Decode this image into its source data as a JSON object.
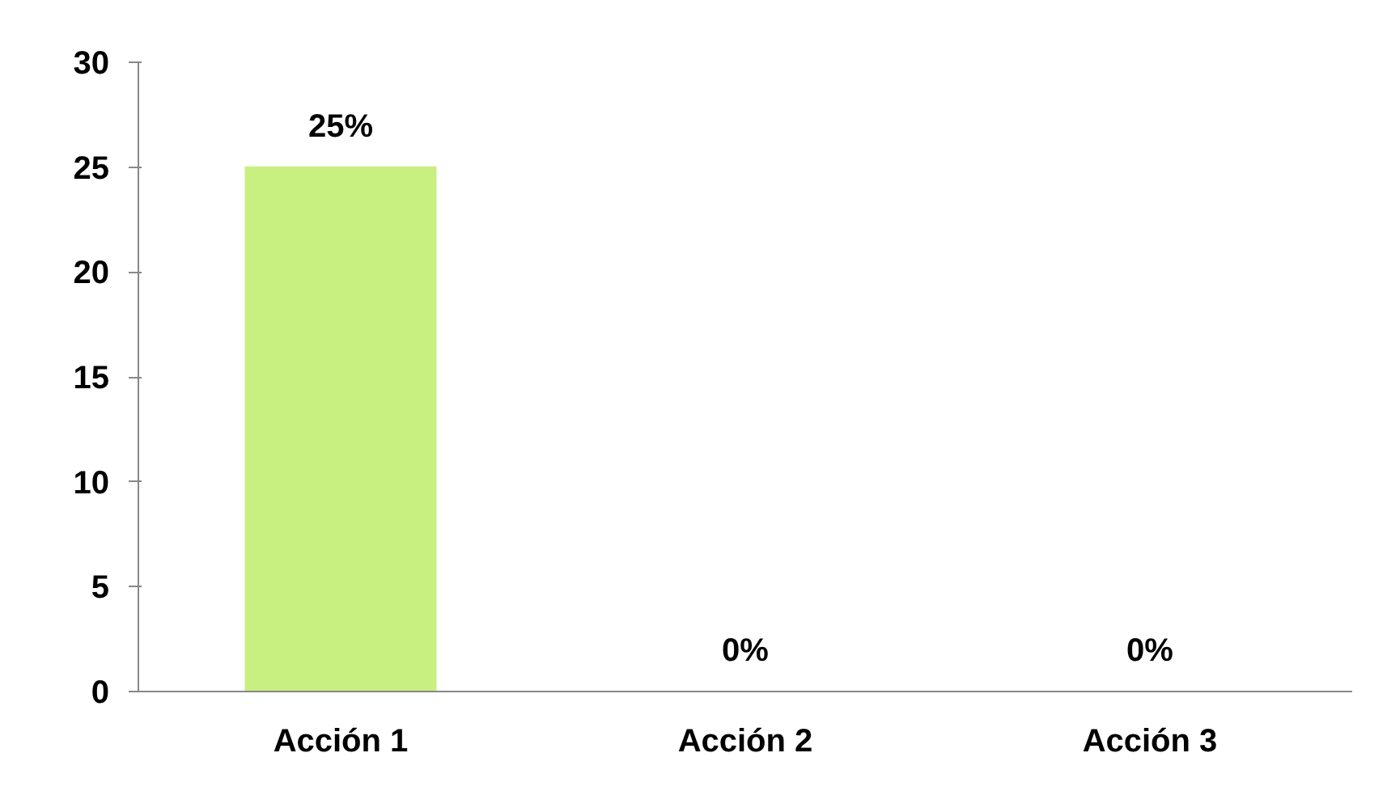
{
  "chart_data": {
    "type": "bar",
    "categories": [
      "Acción 1",
      "Acción 2",
      "Acción 3"
    ],
    "values": [
      25,
      0,
      0
    ],
    "color": "#c8f080",
    "value_labels": [
      "25%",
      "0%",
      "0%"
    ],
    "ylim": [
      0,
      30
    ],
    "yticks": [
      0,
      5,
      10,
      15,
      20,
      25,
      30
    ],
    "grid": false
  }
}
